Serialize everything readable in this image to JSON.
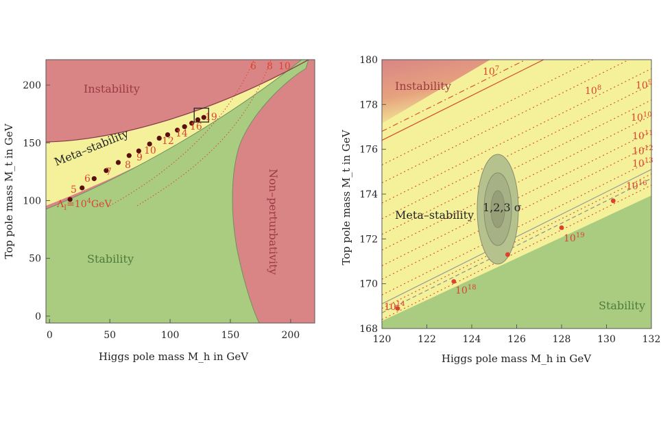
{
  "colors": {
    "instability": "#d98585",
    "metastability": "#f5f19a",
    "stability": "#a9cc80",
    "label_red": "#d9442f",
    "point_dark": "#5a0f0f",
    "frame": "#555555"
  },
  "chart_data": [
    {
      "type": "area",
      "title": "",
      "xlabel": "Higgs pole mass M_h in GeV",
      "ylabel": "Top pole mass M_t in GeV",
      "xlim": [
        -3,
        220
      ],
      "ylim": [
        -6,
        222
      ],
      "xticks": [
        "0",
        "50",
        "100",
        "150",
        "200"
      ],
      "yticks": [
        "0",
        "50",
        "100",
        "150",
        "200"
      ],
      "regions": [
        "Instability",
        "Meta–stability",
        "Stability",
        "Non–perturbativity"
      ],
      "scale_point_labels": [
        "Λ",
        "I",
        "=10",
        "4",
        "GeV"
      ],
      "scale_labels": [
        "5",
        "6",
        "7",
        "8",
        "9",
        "10",
        "12",
        "14",
        "16",
        "19"
      ],
      "perturbativity_labels": [
        "6",
        "8",
        "10"
      ],
      "points": [
        {
          "x": 17,
          "y": 101
        },
        {
          "x": 27,
          "y": 111
        },
        {
          "x": 37,
          "y": 119
        },
        {
          "x": 47,
          "y": 126
        },
        {
          "x": 57,
          "y": 133
        },
        {
          "x": 66,
          "y": 139
        },
        {
          "x": 74,
          "y": 143
        },
        {
          "x": 83,
          "y": 149
        },
        {
          "x": 91,
          "y": 154
        },
        {
          "x": 98,
          "y": 157
        },
        {
          "x": 106,
          "y": 161
        },
        {
          "x": 112,
          "y": 164
        },
        {
          "x": 118,
          "y": 167
        },
        {
          "x": 123,
          "y": 170
        },
        {
          "x": 128,
          "y": 172
        }
      ],
      "zoom_box": {
        "x": [
          120,
          132
        ],
        "y": [
          168,
          180
        ]
      }
    },
    {
      "type": "area",
      "title": "",
      "xlabel": "Higgs pole mass M_h in GeV",
      "ylabel": "Top pole mass M_t in GeV",
      "xlim": [
        120,
        132
      ],
      "ylim": [
        168,
        180
      ],
      "xticks": [
        "120",
        "122",
        "124",
        "126",
        "128",
        "130",
        "132"
      ],
      "yticks": [
        "168",
        "170",
        "172",
        "174",
        "176",
        "178",
        "180"
      ],
      "regions": [
        "Instability",
        "Meta–stability",
        "Stability"
      ],
      "ellipse_label": "1,2,3 σ",
      "ellipse_center": {
        "x": 125.1,
        "y": 173.3
      },
      "scale_labels": [
        {
          "base": "10",
          "exp": "7"
        },
        {
          "base": "10",
          "exp": "8"
        },
        {
          "base": "10",
          "exp": "9"
        },
        {
          "base": "10",
          "exp": "10"
        },
        {
          "base": "10",
          "exp": "11"
        },
        {
          "base": "10",
          "exp": "12"
        },
        {
          "base": "10",
          "exp": "13"
        },
        {
          "base": "10",
          "exp": "16"
        },
        {
          "base": "10",
          "exp": "19"
        },
        {
          "base": "10",
          "exp": "18"
        },
        {
          "base": "10",
          "exp": "14"
        }
      ],
      "points": [
        {
          "x": 120.7,
          "y": 168.9
        },
        {
          "x": 123.2,
          "y": 170.1
        },
        {
          "x": 125.6,
          "y": 171.3
        },
        {
          "x": 128.0,
          "y": 172.5
        },
        {
          "x": 130.3,
          "y": 173.7
        }
      ]
    }
  ]
}
